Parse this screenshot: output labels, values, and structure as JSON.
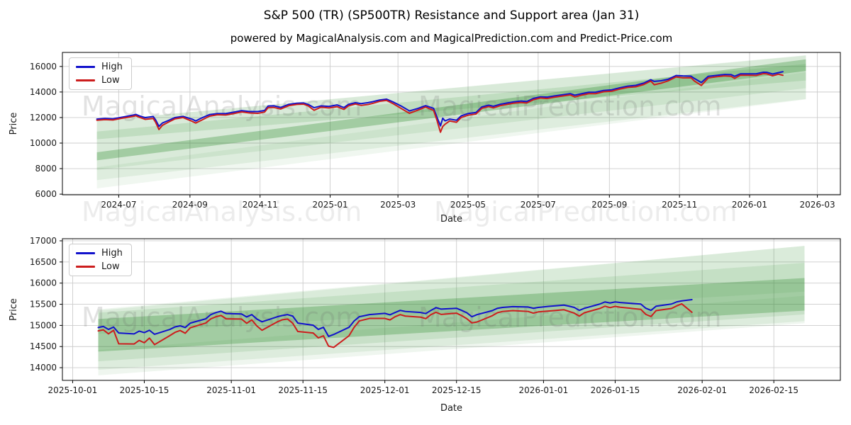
{
  "figure": {
    "title": "S&P 500 (TR) (SP500TR) Resistance and Support area (Jan 31)",
    "subtitle": "powered by MagicalAnalysis.com and MagicalPrediction.com and Predict-Price.com",
    "watermark_left": "MagicalAnalysis.com",
    "watermark_right": "MagicalPrediction.com",
    "colors": {
      "high": "#1111cc",
      "low": "#cc1d1d",
      "band": "#2e8b2e",
      "grid": "#cccccc",
      "spine": "#000000",
      "tick_text": "#1a1a1a",
      "watermark": "#6e6e6e"
    }
  },
  "legend": {
    "high": "High",
    "low": "Low"
  },
  "chart_data": [
    {
      "type": "line",
      "xlabel": "Date",
      "ylabel": "Price",
      "grid": true,
      "legend_position": "upper-left",
      "x_domain": [
        "2024-05-13",
        "2026-03-21"
      ],
      "ylim": [
        5950,
        17100
      ],
      "y_ticks": [
        6000,
        8000,
        10000,
        12000,
        14000,
        16000
      ],
      "x_ticks": [
        {
          "d": "2024-07-01",
          "label": "2024-07"
        },
        {
          "d": "2024-09-01",
          "label": "2024-09"
        },
        {
          "d": "2024-11-01",
          "label": "2024-11"
        },
        {
          "d": "2025-01-01",
          "label": "2025-01"
        },
        {
          "d": "2025-03-01",
          "label": "2025-03"
        },
        {
          "d": "2025-05-01",
          "label": "2025-05"
        },
        {
          "d": "2025-07-01",
          "label": "2025-07"
        },
        {
          "d": "2025-09-01",
          "label": "2025-09"
        },
        {
          "d": "2025-11-01",
          "label": "2025-11"
        },
        {
          "d": "2026-01-01",
          "label": "2026-01"
        },
        {
          "d": "2026-03-01",
          "label": "2026-03"
        }
      ],
      "dates": [
        "2024-06-12",
        "2024-06-19",
        "2024-06-26",
        "2024-07-03",
        "2024-07-10",
        "2024-07-16",
        "2024-07-19",
        "2024-07-24",
        "2024-07-31",
        "2024-08-02",
        "2024-08-05",
        "2024-08-08",
        "2024-08-13",
        "2024-08-19",
        "2024-08-26",
        "2024-09-03",
        "2024-09-06",
        "2024-09-11",
        "2024-09-18",
        "2024-09-25",
        "2024-10-02",
        "2024-10-09",
        "2024-10-16",
        "2024-10-23",
        "2024-10-30",
        "2024-11-05",
        "2024-11-08",
        "2024-11-13",
        "2024-11-19",
        "2024-11-26",
        "2024-12-03",
        "2024-12-09",
        "2024-12-13",
        "2024-12-18",
        "2024-12-24",
        "2024-12-31",
        "2025-01-07",
        "2025-01-13",
        "2025-01-17",
        "2025-01-23",
        "2025-01-28",
        "2025-02-03",
        "2025-02-07",
        "2025-02-13",
        "2025-02-19",
        "2025-02-25",
        "2025-03-04",
        "2025-03-11",
        "2025-03-18",
        "2025-03-25",
        "2025-04-01",
        "2025-04-04",
        "2025-04-07",
        "2025-04-09",
        "2025-04-11",
        "2025-04-15",
        "2025-04-21",
        "2025-04-25",
        "2025-05-01",
        "2025-05-08",
        "2025-05-13",
        "2025-05-19",
        "2025-05-23",
        "2025-05-29",
        "2025-06-04",
        "2025-06-10",
        "2025-06-16",
        "2025-06-21",
        "2025-06-27",
        "2025-07-03",
        "2025-07-09",
        "2025-07-15",
        "2025-07-22",
        "2025-07-29",
        "2025-08-02",
        "2025-08-08",
        "2025-08-14",
        "2025-08-20",
        "2025-08-27",
        "2025-09-03",
        "2025-09-10",
        "2025-09-17",
        "2025-09-24",
        "2025-10-01",
        "2025-10-07",
        "2025-10-10",
        "2025-10-16",
        "2025-10-22",
        "2025-10-29",
        "2025-11-04",
        "2025-11-11",
        "2025-11-14",
        "2025-11-20",
        "2025-11-26",
        "2025-12-03",
        "2025-12-10",
        "2025-12-16",
        "2025-12-19",
        "2025-12-24",
        "2025-12-31",
        "2026-01-07",
        "2026-01-13",
        "2026-01-16",
        "2026-01-21",
        "2026-01-26",
        "2026-01-30"
      ],
      "series": [
        {
          "name": "High",
          "values": [
            11880,
            11930,
            11900,
            12010,
            12130,
            12240,
            12130,
            11990,
            12080,
            11830,
            11310,
            11570,
            11760,
            12000,
            12090,
            11870,
            11730,
            11960,
            12230,
            12310,
            12310,
            12420,
            12540,
            12470,
            12470,
            12550,
            12900,
            12920,
            12790,
            13030,
            13120,
            13140,
            13020,
            12770,
            12910,
            12870,
            12990,
            12780,
            13030,
            13160,
            13090,
            13170,
            13240,
            13370,
            13440,
            13210,
            12890,
            12520,
            12700,
            12930,
            12720,
            12020,
            11350,
            11950,
            11740,
            11880,
            11790,
            12130,
            12310,
            12400,
            12830,
            12970,
            12880,
            13040,
            13140,
            13230,
            13290,
            13250,
            13500,
            13620,
            13600,
            13690,
            13780,
            13870,
            13750,
            13870,
            13980,
            13990,
            14120,
            14170,
            14330,
            14460,
            14520,
            14700,
            14960,
            14830,
            14880,
            14990,
            15290,
            15260,
            15240,
            15060,
            14740,
            15230,
            15300,
            15370,
            15360,
            15230,
            15420,
            15420,
            15430,
            15550,
            15540,
            15410,
            15510,
            15590
          ]
        },
        {
          "name": "Low",
          "values": [
            11790,
            11840,
            11810,
            11930,
            12030,
            12140,
            12020,
            11860,
            11930,
            11650,
            11060,
            11390,
            11630,
            11900,
            12000,
            11700,
            11570,
            11790,
            12110,
            12220,
            12200,
            12310,
            12440,
            12360,
            12330,
            12430,
            12780,
            12790,
            12670,
            12930,
            13030,
            13050,
            12910,
            12570,
            12810,
            12750,
            12850,
            12640,
            12920,
            13060,
            12950,
            13020,
            13110,
            13270,
            13340,
            13080,
            12700,
            12330,
            12570,
            12820,
            12560,
            11770,
            10850,
            11300,
            11480,
            11730,
            11630,
            12000,
            12180,
            12280,
            12720,
            12860,
            12760,
            12930,
            13030,
            13130,
            13180,
            13140,
            13400,
            13530,
            13490,
            13590,
            13680,
            13770,
            13610,
            13760,
            13870,
            13870,
            14020,
            14060,
            14230,
            14360,
            14410,
            14590,
            14860,
            14570,
            14690,
            14870,
            15180,
            15110,
            15120,
            14860,
            14510,
            15100,
            15190,
            15260,
            15230,
            15070,
            15320,
            15310,
            15300,
            15440,
            15420,
            15270,
            15390,
            15310
          ]
        }
      ],
      "bands": [
        {
          "start": "2024-06-12",
          "end": "2026-02-19",
          "start_range": [
            7100,
            11750
          ],
          "end_range": [
            13450,
            16850
          ],
          "alpha": 0.09
        },
        {
          "start": "2024-06-12",
          "end": "2026-02-19",
          "start_range": [
            7900,
            11750
          ],
          "end_range": [
            14300,
            16880
          ],
          "alpha": 0.1
        },
        {
          "start": "2024-06-12",
          "end": "2026-02-19",
          "start_range": [
            10300,
            10900
          ],
          "end_range": [
            14900,
            16200
          ],
          "alpha": 0.14
        },
        {
          "start": "2024-06-12",
          "end": "2026-02-19",
          "start_range": [
            8650,
            9280
          ],
          "end_range": [
            15650,
            16560
          ],
          "alpha": 0.32
        },
        {
          "start": "2024-06-12",
          "end": "2026-02-19",
          "start_range": [
            6450,
            8100
          ],
          "end_range": [
            13420,
            15550
          ],
          "alpha": 0.07
        }
      ]
    },
    {
      "type": "line",
      "xlabel": "Date",
      "ylabel": "Price",
      "grid": true,
      "legend_position": "upper-left",
      "x_domain": [
        "2025-09-29",
        "2026-02-28"
      ],
      "ylim": [
        13700,
        17050
      ],
      "y_ticks": [
        14000,
        14500,
        15000,
        15500,
        16000,
        16500,
        17000
      ],
      "x_ticks": [
        {
          "d": "2025-10-01",
          "label": "2025-10-01"
        },
        {
          "d": "2025-10-15",
          "label": "2025-10-15"
        },
        {
          "d": "2025-11-01",
          "label": "2025-11-01"
        },
        {
          "d": "2025-11-15",
          "label": "2025-11-15"
        },
        {
          "d": "2025-12-01",
          "label": "2025-12-01"
        },
        {
          "d": "2025-12-15",
          "label": "2025-12-15"
        },
        {
          "d": "2026-01-01",
          "label": "2026-01-01"
        },
        {
          "d": "2026-01-15",
          "label": "2026-01-15"
        },
        {
          "d": "2026-02-01",
          "label": "2026-02-01"
        },
        {
          "d": "2026-02-15",
          "label": "2026-02-15"
        }
      ],
      "dates": [
        "2025-10-06",
        "2025-10-07",
        "2025-10-08",
        "2025-10-09",
        "2025-10-10",
        "2025-10-13",
        "2025-10-14",
        "2025-10-15",
        "2025-10-16",
        "2025-10-17",
        "2025-10-20",
        "2025-10-21",
        "2025-10-22",
        "2025-10-23",
        "2025-10-24",
        "2025-10-27",
        "2025-10-28",
        "2025-10-29",
        "2025-10-30",
        "2025-10-31",
        "2025-11-03",
        "2025-11-04",
        "2025-11-05",
        "2025-11-06",
        "2025-11-07",
        "2025-11-10",
        "2025-11-11",
        "2025-11-12",
        "2025-11-13",
        "2025-11-14",
        "2025-11-17",
        "2025-11-18",
        "2025-11-19",
        "2025-11-20",
        "2025-11-21",
        "2025-11-24",
        "2025-11-25",
        "2025-11-26",
        "2025-11-28",
        "2025-12-01",
        "2025-12-02",
        "2025-12-03",
        "2025-12-04",
        "2025-12-05",
        "2025-12-08",
        "2025-12-09",
        "2025-12-10",
        "2025-12-11",
        "2025-12-12",
        "2025-12-15",
        "2025-12-16",
        "2025-12-17",
        "2025-12-18",
        "2025-12-19",
        "2025-12-22",
        "2025-12-23",
        "2025-12-24",
        "2025-12-26",
        "2025-12-29",
        "2025-12-30",
        "2025-12-31",
        "2026-01-02",
        "2026-01-05",
        "2026-01-06",
        "2026-01-07",
        "2026-01-08",
        "2026-01-09",
        "2026-01-12",
        "2026-01-13",
        "2026-01-14",
        "2026-01-15",
        "2026-01-16",
        "2026-01-20",
        "2026-01-21",
        "2026-01-22",
        "2026-01-23",
        "2026-01-26",
        "2026-01-27",
        "2026-01-28",
        "2026-01-30"
      ],
      "series": [
        {
          "name": "High",
          "values": [
            14950,
            14975,
            14905,
            14960,
            14820,
            14800,
            14865,
            14830,
            14885,
            14790,
            14905,
            14965,
            14990,
            14950,
            15055,
            15155,
            15255,
            15305,
            15335,
            15280,
            15270,
            15200,
            15255,
            15150,
            15085,
            15205,
            15235,
            15255,
            15220,
            15055,
            15005,
            14905,
            14955,
            14740,
            14785,
            14955,
            15105,
            15205,
            15255,
            15285,
            15250,
            15305,
            15355,
            15330,
            15305,
            15280,
            15355,
            15420,
            15385,
            15405,
            15355,
            15300,
            15205,
            15255,
            15350,
            15405,
            15425,
            15445,
            15435,
            15405,
            15425,
            15450,
            15480,
            15455,
            15425,
            15355,
            15405,
            15505,
            15555,
            15530,
            15555,
            15540,
            15505,
            15405,
            15355,
            15455,
            15505,
            15555,
            15580,
            15610
          ]
        },
        {
          "name": "Low",
          "values": [
            14870,
            14895,
            14800,
            14885,
            14565,
            14560,
            14645,
            14590,
            14700,
            14545,
            14760,
            14835,
            14880,
            14815,
            14945,
            15055,
            15155,
            15205,
            15235,
            15155,
            15150,
            15050,
            15130,
            14985,
            14885,
            15085,
            15135,
            15150,
            15050,
            14855,
            14820,
            14705,
            14755,
            14510,
            14480,
            14755,
            14955,
            15105,
            15165,
            15165,
            15130,
            15205,
            15255,
            15220,
            15195,
            15160,
            15255,
            15310,
            15260,
            15290,
            15230,
            15160,
            15060,
            15080,
            15230,
            15300,
            15330,
            15350,
            15330,
            15290,
            15320,
            15340,
            15370,
            15330,
            15290,
            15220,
            15300,
            15400,
            15455,
            15420,
            15450,
            15430,
            15380,
            15260,
            15210,
            15350,
            15400,
            15460,
            15510,
            15310
          ]
        }
      ],
      "bands": [
        {
          "start": "2025-10-06",
          "end": "2026-02-21",
          "start_range": [
            13950,
            15350
          ],
          "end_range": [
            15100,
            16880
          ],
          "alpha": 0.09
        },
        {
          "start": "2025-10-06",
          "end": "2026-02-21",
          "start_range": [
            14150,
            15300
          ],
          "end_range": [
            15260,
            16480
          ],
          "alpha": 0.12
        },
        {
          "start": "2025-10-06",
          "end": "2026-02-21",
          "start_range": [
            14380,
            15150
          ],
          "end_range": [
            15350,
            16120
          ],
          "alpha": 0.3
        },
        {
          "start": "2025-10-06",
          "end": "2026-02-21",
          "start_range": [
            13820,
            14420
          ],
          "end_range": [
            15050,
            15700
          ],
          "alpha": 0.08
        },
        {
          "start": "2025-10-06",
          "end": "2026-02-21",
          "start_range": [
            14800,
            15380
          ],
          "end_range": [
            15800,
            16880
          ],
          "alpha": 0.09
        }
      ]
    }
  ]
}
